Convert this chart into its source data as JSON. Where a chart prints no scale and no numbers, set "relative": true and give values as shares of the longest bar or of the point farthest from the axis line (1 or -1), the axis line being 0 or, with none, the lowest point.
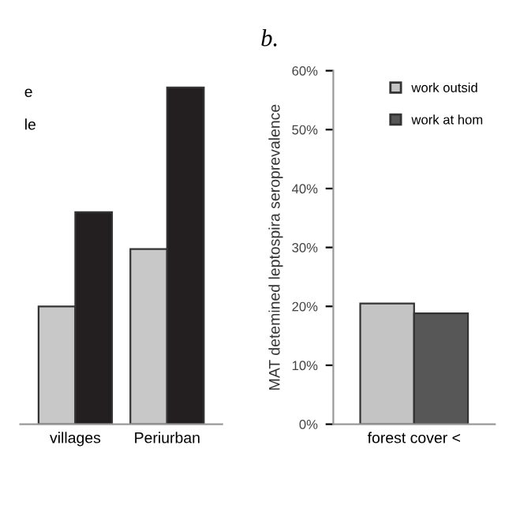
{
  "chart_data": [
    {
      "type": "bar",
      "relative": true,
      "categories": [
        "villages",
        "Periurban"
      ],
      "series": [
        {
          "color": "#c8c8c8",
          "values": [
            0.35,
            0.52
          ]
        },
        {
          "color": "#231f20",
          "values": [
            0.63,
            1
          ]
        }
      ],
      "annotations": [
        "e",
        "le"
      ],
      "grid": false,
      "legend": false
    },
    {
      "type": "bar",
      "title": "b.",
      "ylabel": "MAT detemined leptospira seroprevalence",
      "categories": [
        "forest cover <"
      ],
      "series": [
        {
          "name": "work outsid",
          "color": "#c4c4c4",
          "values": [
            20.5
          ]
        },
        {
          "name": "work at hom",
          "color": "#575757",
          "values": [
            18.8
          ]
        }
      ],
      "ylim": [
        0,
        60
      ],
      "yticks": [
        {
          "value": 0,
          "label": "0%"
        },
        {
          "value": 10,
          "label": "10%"
        },
        {
          "value": 20,
          "label": "20%"
        },
        {
          "value": 30,
          "label": "30%"
        },
        {
          "value": 40,
          "label": "40%"
        },
        {
          "value": 50,
          "label": "50%"
        },
        {
          "value": 60,
          "label": "60%"
        }
      ],
      "grid": false,
      "legend": "top right"
    }
  ]
}
